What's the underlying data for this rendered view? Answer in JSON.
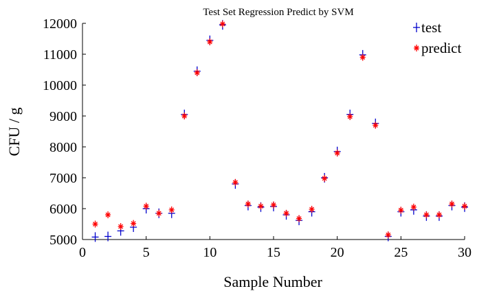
{
  "chart_data": {
    "type": "scatter",
    "title": "Test Set Regression Predict by SVM",
    "xlabel": "Sample Number",
    "ylabel": "CFU / g",
    "xlim": [
      0,
      30
    ],
    "ylim": [
      5000,
      12000
    ],
    "x_ticks": [
      "0",
      "5",
      "10",
      "15",
      "20",
      "25",
      "30"
    ],
    "y_ticks": [
      "5000",
      "6000",
      "7000",
      "8000",
      "9000",
      "10000",
      "11000",
      "12000"
    ],
    "legend_position": "top-right",
    "x": [
      1,
      2,
      3,
      4,
      5,
      6,
      7,
      8,
      9,
      10,
      11,
      12,
      13,
      14,
      15,
      16,
      17,
      18,
      19,
      20,
      21,
      22,
      23,
      24,
      25,
      26,
      27,
      28,
      29,
      30
    ],
    "series": [
      {
        "name": "test",
        "marker": "plus",
        "color": "#0000cc",
        "values": [
          5080,
          5100,
          5280,
          5400,
          6000,
          5850,
          5850,
          9050,
          10450,
          11450,
          11950,
          6800,
          6100,
          6050,
          6070,
          5800,
          5620,
          5900,
          7000,
          7850,
          9050,
          10980,
          8760,
          5100,
          5900,
          5960,
          5760,
          5760,
          6100,
          6050
        ]
      },
      {
        "name": "predict",
        "marker": "star",
        "color": "#ff0000",
        "values": [
          5500,
          5800,
          5420,
          5520,
          6080,
          5850,
          5960,
          9000,
          10400,
          11400,
          11980,
          6850,
          6150,
          6080,
          6120,
          5850,
          5680,
          5980,
          6980,
          7800,
          8980,
          10900,
          8700,
          5150,
          5950,
          6050,
          5800,
          5800,
          6150,
          6080
        ]
      }
    ]
  }
}
